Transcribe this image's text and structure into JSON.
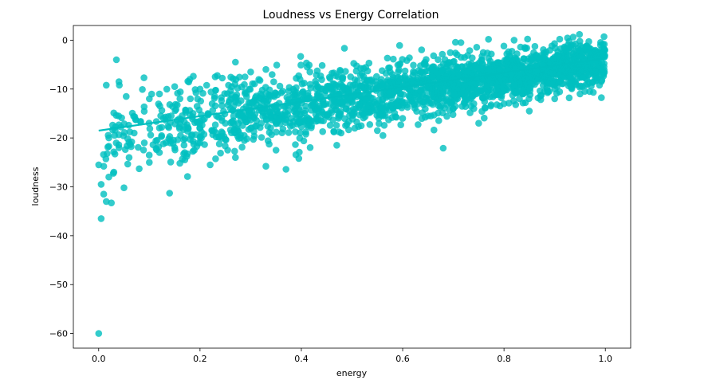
{
  "chart_data": {
    "type": "scatter",
    "title": "Loudness vs Energy Correlation",
    "xlabel": "energy",
    "ylabel": "loudness",
    "xlim": [
      -0.05,
      1.05
    ],
    "ylim": [
      -63,
      3
    ],
    "xticks": [
      0.0,
      0.2,
      0.4,
      0.6,
      0.8,
      1.0
    ],
    "xtick_labels": [
      "0.0",
      "0.2",
      "0.4",
      "0.6",
      "0.8",
      "1.0"
    ],
    "yticks": [
      0,
      -10,
      -20,
      -30,
      -40,
      -50,
      -60
    ],
    "ytick_labels": [
      "0",
      "−10",
      "−20",
      "−30",
      "−40",
      "−50",
      "−60"
    ],
    "grid": false,
    "color": "#00BFBF",
    "regression_line": {
      "x": [
        0.0,
        1.0
      ],
      "y": [
        -18.5,
        -3.7
      ]
    },
    "points": [
      [
        0.0,
        -60
      ],
      [
        0.005,
        -36.5
      ],
      [
        0.005,
        -29.5
      ],
      [
        0.01,
        -31.5
      ],
      [
        0.01,
        -25.8
      ],
      [
        0.015,
        -33
      ],
      [
        0.025,
        -33.3
      ],
      [
        0.0,
        -25.5
      ],
      [
        0.02,
        -28
      ],
      [
        0.03,
        -27
      ],
      [
        0.035,
        -4
      ],
      [
        0.015,
        -9.2
      ],
      [
        0.04,
        -8.5
      ],
      [
        0.05,
        -30.2
      ],
      [
        0.14,
        -31.3
      ],
      [
        0.02,
        -20
      ],
      [
        0.04,
        -22
      ],
      [
        0.06,
        -24
      ],
      [
        0.07,
        -19
      ],
      [
        0.09,
        -21
      ],
      [
        0.1,
        -25
      ],
      [
        0.08,
        -26.3
      ],
      [
        0.12,
        -23
      ],
      [
        0.15,
        -22
      ],
      [
        0.17,
        -24.5
      ],
      [
        0.2,
        -21
      ],
      [
        0.22,
        -25.5
      ],
      [
        0.27,
        -24
      ],
      [
        0.33,
        -25.8
      ],
      [
        0.35,
        -22.5
      ],
      [
        0.395,
        -24.2
      ],
      [
        0.47,
        -21.5
      ],
      [
        0.68,
        -22.1
      ],
      [
        0.715,
        -0.5
      ],
      [
        0.82,
        0.0
      ],
      [
        0.91,
        0.2
      ],
      [
        0.3,
        -18
      ],
      [
        0.25,
        -17
      ],
      [
        0.28,
        -20
      ],
      [
        0.38,
        -16
      ],
      [
        0.42,
        -17.5
      ],
      [
        0.5,
        -15
      ],
      [
        0.55,
        -18.5
      ],
      [
        0.6,
        -16
      ],
      [
        0.65,
        -15.5
      ],
      [
        0.7,
        -14
      ],
      [
        0.75,
        -17
      ],
      [
        0.8,
        -13
      ],
      [
        0.85,
        -14.5
      ],
      [
        0.9,
        -12
      ],
      [
        0.95,
        -11
      ],
      [
        0.1,
        -12
      ],
      [
        0.12,
        -11
      ],
      [
        0.15,
        -9.5
      ],
      [
        0.18,
        -8
      ],
      [
        0.2,
        -10
      ],
      [
        0.23,
        -7.5
      ],
      [
        0.27,
        -4.5
      ],
      [
        0.3,
        -6.5
      ],
      [
        0.33,
        -6
      ]
    ],
    "cloud": {
      "count": 2200,
      "x_range": [
        0.0,
        1.0
      ],
      "center": {
        "x": [
          0.0,
          1.0
        ],
        "y": [
          -19.5,
          -4.5
        ]
      },
      "spread": [
        4.5,
        2.2
      ]
    }
  }
}
